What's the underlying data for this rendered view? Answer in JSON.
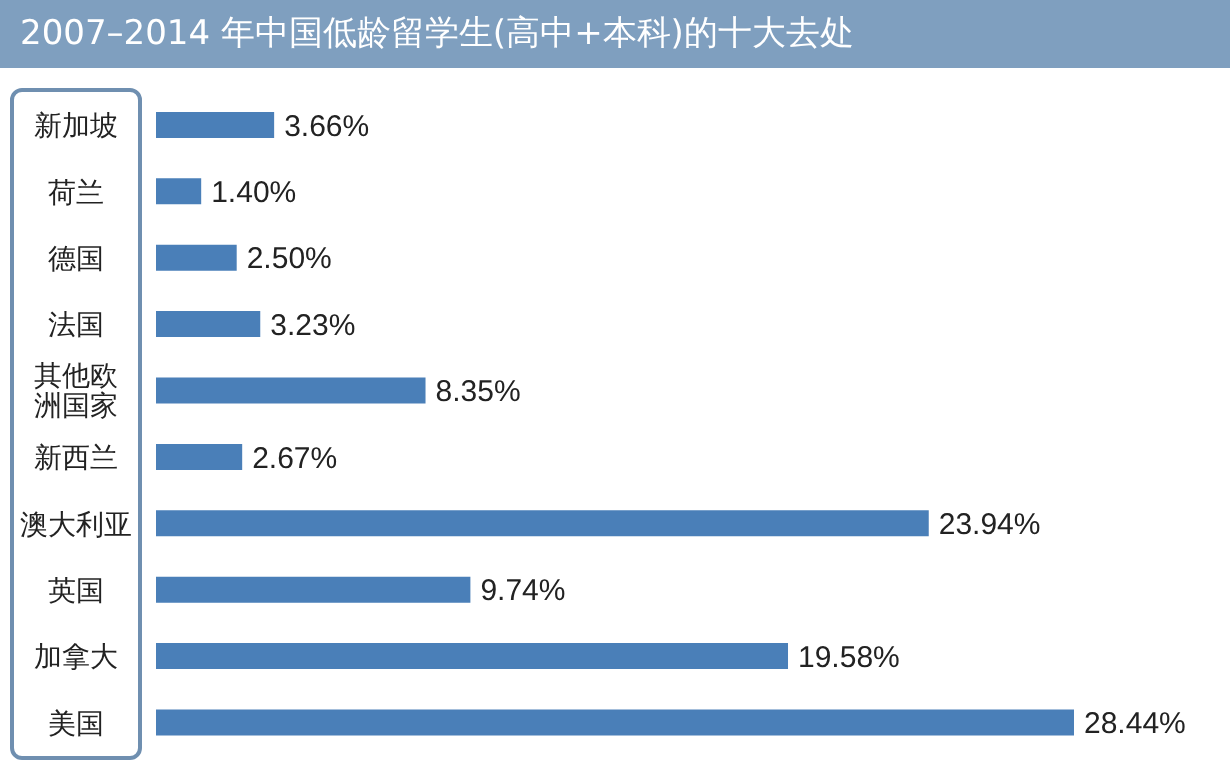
{
  "chart_data": {
    "type": "bar",
    "orientation": "horizontal",
    "title": "2007–2014 年中国低龄留学生(高中+本科)的十大去处",
    "categories": [
      "新加坡",
      "荷兰",
      "德国",
      "法国",
      "其他欧洲国家",
      "新西兰",
      "澳大利亚",
      "英国",
      "加拿大",
      "美国"
    ],
    "values": [
      3.66,
      1.4,
      2.5,
      3.23,
      8.35,
      2.67,
      23.94,
      9.74,
      19.58,
      28.44
    ],
    "value_labels": [
      "3.66%",
      "1.40%",
      "2.50%",
      "3.23%",
      "8.35%",
      "2.67%",
      "23.94%",
      "9.74%",
      "19.58%",
      "28.44%"
    ],
    "color": "#4a7fb8"
  }
}
